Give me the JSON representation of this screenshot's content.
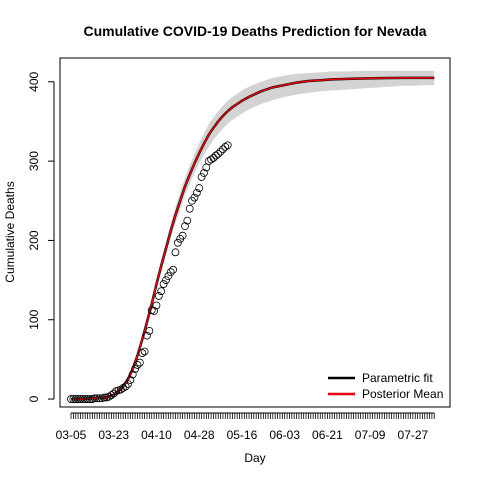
{
  "chart_data": {
    "type": "line",
    "title": "Cumulative COVID-19 Deaths Prediction for Nevada",
    "xlabel": "Day",
    "ylabel": "Cumulative Deaths",
    "x_start": "03-05",
    "x_tick_labels": [
      "03-05",
      "03-23",
      "04-10",
      "04-28",
      "05-16",
      "06-03",
      "06-21",
      "07-09",
      "07-27"
    ],
    "x_tick_days": [
      0,
      18,
      36,
      54,
      72,
      90,
      108,
      126,
      144
    ],
    "x_range_days": [
      0,
      155
    ],
    "y_ticks": [
      0,
      100,
      200,
      300,
      400
    ],
    "ylim": [
      -10,
      430
    ],
    "legend": {
      "position": "bottom-right",
      "entries": [
        {
          "label": "Parametric fit",
          "color": "#000000"
        },
        {
          "label": "Posterior Mean",
          "color": "#e8000b"
        }
      ]
    },
    "band_color": "#d3d3d3",
    "series": [
      {
        "name": "Parametric fit",
        "kind": "fitted_curve",
        "color": "#000000",
        "x_days": [
          0,
          5,
          10,
          15,
          18,
          20,
          22,
          24,
          26,
          28,
          30,
          32,
          34,
          36,
          38,
          40,
          42,
          44,
          46,
          48,
          50,
          52,
          54,
          56,
          58,
          60,
          62,
          64,
          66,
          68,
          70,
          72,
          75,
          80,
          85,
          90,
          95,
          100,
          105,
          110,
          115,
          120,
          125,
          130,
          135,
          140,
          145,
          150,
          153
        ],
        "y": [
          0,
          0,
          1,
          2,
          5,
          10,
          16,
          25,
          38,
          55,
          75,
          97,
          120,
          145,
          168,
          190,
          212,
          232,
          250,
          268,
          283,
          297,
          310,
          322,
          333,
          342,
          350,
          357,
          363,
          368,
          372,
          376,
          381,
          388,
          393,
          396,
          399,
          401,
          402,
          403,
          403.5,
          404,
          404.3,
          404.6,
          404.8,
          405,
          405,
          405,
          405
        ],
        "band_lower": [
          0,
          0,
          0,
          1,
          3,
          7,
          13,
          21,
          33,
          50,
          70,
          92,
          114,
          138,
          160,
          182,
          203,
          222,
          240,
          257,
          271,
          285,
          297,
          308,
          318,
          327,
          334,
          341,
          347,
          352,
          356,
          360,
          365,
          372,
          377,
          381,
          384,
          386,
          388,
          389,
          390,
          391,
          392,
          393,
          394,
          395,
          395,
          396,
          396
        ],
        "band_upper": [
          0,
          1,
          2,
          4,
          8,
          13,
          20,
          29,
          43,
          60,
          80,
          102,
          126,
          151,
          175,
          198,
          221,
          242,
          261,
          279,
          295,
          309,
          322,
          335,
          346,
          355,
          363,
          370,
          376,
          381,
          385,
          389,
          394,
          400,
          405,
          408,
          410,
          411,
          412,
          413,
          413,
          413.5,
          414,
          414,
          414,
          414,
          414,
          414,
          414
        ]
      },
      {
        "name": "Posterior Mean",
        "kind": "fitted_curve",
        "color": "#e8000b",
        "x_days": [
          0,
          5,
          10,
          15,
          18,
          20,
          22,
          24,
          26,
          28,
          30,
          32,
          34,
          36,
          38,
          40,
          42,
          44,
          46,
          48,
          50,
          52,
          54,
          56,
          58,
          60,
          62,
          64,
          66,
          68,
          70,
          72,
          75,
          80,
          85,
          90,
          95,
          100,
          105,
          110,
          115,
          120,
          125,
          130,
          135,
          140,
          145,
          150,
          153
        ],
        "y": [
          0,
          0,
          1,
          2,
          5,
          10,
          16,
          25,
          38,
          55,
          75,
          97,
          120,
          145,
          168,
          190,
          212,
          232,
          250,
          268,
          283,
          297,
          310,
          322,
          333,
          342,
          350,
          357,
          363,
          368,
          372,
          376,
          381,
          388,
          393,
          396,
          399,
          401,
          402,
          403,
          403.5,
          404,
          404.3,
          404.6,
          404.8,
          405,
          405,
          405,
          405
        ]
      },
      {
        "name": "Observed",
        "kind": "scatter",
        "x_days": [
          0,
          1,
          2,
          3,
          4,
          5,
          6,
          7,
          8,
          9,
          10,
          11,
          12,
          13,
          14,
          15,
          16,
          17,
          18,
          19,
          20,
          21,
          22,
          23,
          24,
          25,
          26,
          27,
          28,
          29,
          30,
          31,
          32,
          33,
          34,
          35,
          36,
          37,
          38,
          39,
          40,
          41,
          42,
          43,
          44,
          45,
          46,
          47,
          48,
          49,
          50,
          51,
          52,
          53,
          54,
          55,
          56,
          57,
          58,
          59,
          60,
          61,
          62,
          63,
          64,
          65,
          66
        ],
        "y": [
          0,
          0,
          0,
          0,
          0,
          0,
          0,
          0,
          0,
          0,
          1,
          1,
          1,
          1,
          2,
          2,
          3,
          5,
          7,
          10,
          11,
          12,
          14,
          16,
          19,
          24,
          31,
          38,
          43,
          46,
          58,
          60,
          80,
          86,
          112,
          111,
          118,
          130,
          136,
          145,
          150,
          155,
          160,
          163,
          185,
          197,
          202,
          206,
          218,
          225,
          240,
          250,
          254,
          260,
          266,
          280,
          285,
          292,
          300,
          302,
          304,
          307,
          309,
          312,
          315,
          318,
          320
        ]
      }
    ]
  }
}
